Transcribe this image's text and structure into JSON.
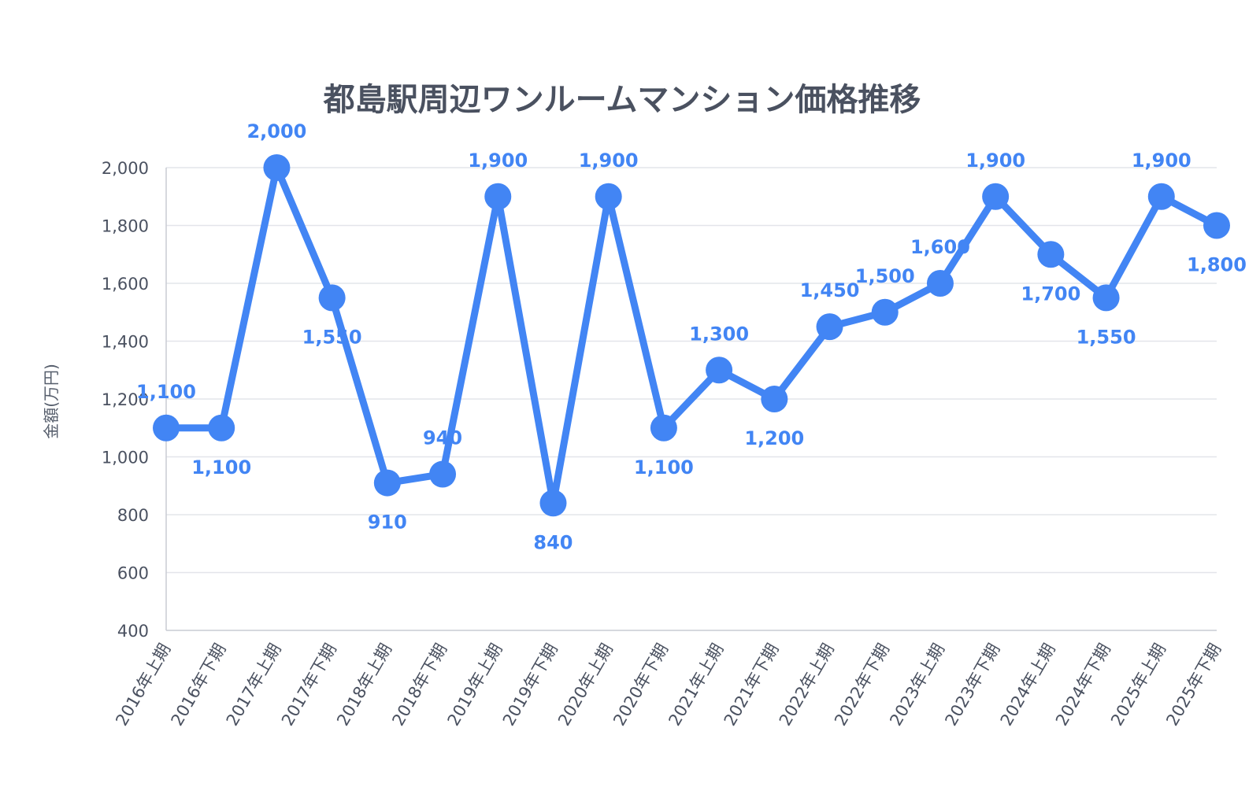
{
  "chart_data": {
    "type": "line",
    "title": "都島駅周辺ワンルームマンション価格推移",
    "ylabel": "金額(万円)",
    "xlabel": "",
    "ylim": [
      400,
      2000
    ],
    "yticks": [
      400,
      600,
      800,
      1000,
      1200,
      1400,
      1600,
      1800,
      2000
    ],
    "ytick_labels": [
      "400",
      "600",
      "800",
      "1,000",
      "1,200",
      "1,400",
      "1,600",
      "1,800",
      "2,000"
    ],
    "grid": true,
    "color": "#4285f4",
    "categories": [
      "2016年上期",
      "2016年下期",
      "2017年上期",
      "2017年下期",
      "2018年上期",
      "2018年下期",
      "2019年上期",
      "2019年下期",
      "2020年上期",
      "2020年下期",
      "2021年上期",
      "2021年下期",
      "2022年上期",
      "2022年下期",
      "2023年上期",
      "2023年下期",
      "2024年上期",
      "2024年下期",
      "2025年上期",
      "2025年下期"
    ],
    "series": [
      {
        "values": [
          1100,
          1100,
          2000,
          1550,
          910,
          940,
          1900,
          840,
          1900,
          1100,
          1300,
          1200,
          1450,
          1500,
          1600,
          1900,
          1700,
          1550,
          1900,
          1800
        ],
        "labels": [
          "1,100",
          "1,100",
          "2,000",
          "1,550",
          "910",
          "940",
          "1,900",
          "840",
          "1,900",
          "1,100",
          "1,300",
          "1,200",
          "1,450",
          "1,500",
          "1,600",
          "1,900",
          "1,700",
          "1,550",
          "1,900",
          "1,800"
        ],
        "label_positions": [
          "above",
          "below",
          "above",
          "below",
          "below",
          "above",
          "above",
          "below",
          "above",
          "below",
          "above",
          "below",
          "above",
          "above",
          "above",
          "above",
          "below",
          "below",
          "above",
          "below"
        ]
      }
    ]
  }
}
